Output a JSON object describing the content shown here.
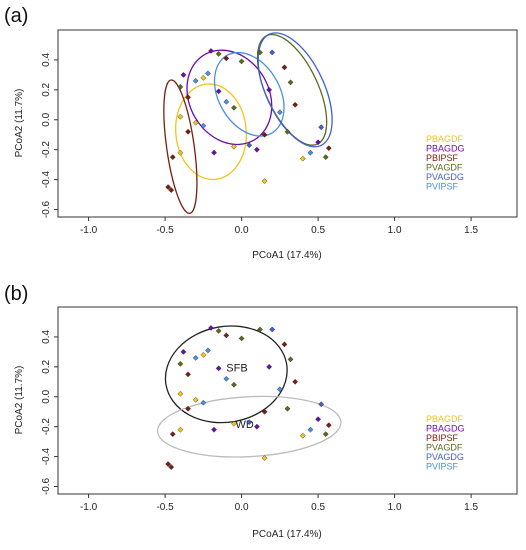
{
  "colors": {
    "PBAGDF": "#f0c419",
    "PBAGDG": "#6a0dad",
    "PBIPSF": "#7a1f0f",
    "PVAGDF": "#5b6b1e",
    "PVAGDG": "#3f5fd6",
    "PVIPSF": "#4a90e2"
  },
  "chart_data": [
    {
      "type": "scatter",
      "panel_label": "(a)",
      "xlabel": "PCoA1 (17.4%)",
      "ylabel": "PCoA2 (11.7%)",
      "xlim": [
        -1.2,
        1.8
      ],
      "ylim": [
        -0.65,
        0.6
      ],
      "xticks": [
        "-1.0",
        "-0.5",
        "0.0",
        "0.5",
        "1.0",
        "1.5"
      ],
      "yticks": [
        "-0.6",
        "-0.4",
        "-0.2",
        "0.0",
        "0.2",
        "0.4"
      ],
      "legend": [
        "PBAGDF",
        "PBAGDG",
        "PBIPSF",
        "PVAGDF",
        "PVAGDG",
        "PVIPSF"
      ],
      "legend_position": "right",
      "grid": false,
      "ellipses": [
        {
          "group": "PBAGDF",
          "cx": -0.2,
          "cy": -0.08,
          "rx": 0.23,
          "ry": 0.32,
          "angle_deg": 5
        },
        {
          "group": "PBIPSF",
          "cx": -0.4,
          "cy": -0.18,
          "rx": 0.09,
          "ry": 0.45,
          "angle_deg": 8
        },
        {
          "group": "PBAGDG",
          "cx": -0.08,
          "cy": 0.15,
          "rx": 0.26,
          "ry": 0.33,
          "angle_deg": 30
        },
        {
          "group": "PVIPSF",
          "cx": 0.05,
          "cy": 0.17,
          "rx": 0.2,
          "ry": 0.3,
          "angle_deg": 30
        },
        {
          "group": "PVAGDF",
          "cx": 0.33,
          "cy": 0.2,
          "rx": 0.17,
          "ry": 0.4,
          "angle_deg": 25
        },
        {
          "group": "PVAGDG",
          "cx": 0.35,
          "cy": 0.2,
          "rx": 0.19,
          "ry": 0.41,
          "angle_deg": 25
        }
      ],
      "points": [
        {
          "group": "PBAGDG",
          "x": -0.2,
          "y": 0.46
        },
        {
          "group": "PVAGDF",
          "x": -0.15,
          "y": 0.44
        },
        {
          "group": "PBIPSF",
          "x": -0.1,
          "y": 0.41
        },
        {
          "group": "PVAGDF",
          "x": 0.0,
          "y": 0.39
        },
        {
          "group": "PBAGDG",
          "x": -0.38,
          "y": 0.3
        },
        {
          "group": "PVAGDF",
          "x": -0.4,
          "y": 0.22
        },
        {
          "group": "PVIPSF",
          "x": -0.3,
          "y": 0.26
        },
        {
          "group": "PBAGDF",
          "x": -0.25,
          "y": 0.28
        },
        {
          "group": "PVIPSF",
          "x": -0.22,
          "y": 0.31
        },
        {
          "group": "PBIPSF",
          "x": -0.35,
          "y": 0.15
        },
        {
          "group": "PBAGDG",
          "x": -0.15,
          "y": 0.19
        },
        {
          "group": "PVIPSF",
          "x": -0.1,
          "y": 0.12
        },
        {
          "group": "PVAGDF",
          "x": -0.05,
          "y": 0.08
        },
        {
          "group": "PBAGDF",
          "x": -0.4,
          "y": 0.02
        },
        {
          "group": "PBIPSF",
          "x": -0.35,
          "y": -0.08
        },
        {
          "group": "PBAGDF",
          "x": -0.3,
          "y": -0.02
        },
        {
          "group": "PVIPSF",
          "x": -0.25,
          "y": -0.04
        },
        {
          "group": "PBIPSF",
          "x": -0.45,
          "y": -0.25
        },
        {
          "group": "PBAGDF",
          "x": -0.4,
          "y": -0.22
        },
        {
          "group": "PBAGDG",
          "x": -0.18,
          "y": -0.22
        },
        {
          "group": "PBAGDF",
          "x": -0.05,
          "y": -0.18
        },
        {
          "group": "PBIPSF",
          "x": -0.48,
          "y": -0.45
        },
        {
          "group": "PBIPSF",
          "x": -0.46,
          "y": -0.47
        },
        {
          "group": "PBAGDF",
          "x": 0.15,
          "y": -0.41
        },
        {
          "group": "PBAGDG",
          "x": 0.1,
          "y": -0.2
        },
        {
          "group": "PVAGDG",
          "x": 0.05,
          "y": -0.17
        },
        {
          "group": "PVAGDF",
          "x": 0.12,
          "y": 0.45
        },
        {
          "group": "PVAGDG",
          "x": 0.2,
          "y": 0.45
        },
        {
          "group": "PBIPSF",
          "x": 0.28,
          "y": 0.35
        },
        {
          "group": "PVAGDF",
          "x": 0.32,
          "y": 0.25
        },
        {
          "group": "PBIPSF",
          "x": 0.35,
          "y": 0.1
        },
        {
          "group": "PBAGDG",
          "x": 0.18,
          "y": 0.2
        },
        {
          "group": "PVIPSF",
          "x": 0.25,
          "y": 0.05
        },
        {
          "group": "PVAGDF",
          "x": 0.3,
          "y": -0.08
        },
        {
          "group": "PBIPSF",
          "x": 0.15,
          "y": -0.1
        },
        {
          "group": "PBAGDG",
          "x": 0.5,
          "y": -0.15
        },
        {
          "group": "PVAGDF",
          "x": 0.55,
          "y": -0.25
        },
        {
          "group": "PVAGDG",
          "x": 0.52,
          "y": -0.05
        },
        {
          "group": "PBIPSF",
          "x": 0.57,
          "y": -0.19
        },
        {
          "group": "PVIPSF",
          "x": 0.45,
          "y": -0.22
        },
        {
          "group": "PBAGDF",
          "x": 0.4,
          "y": -0.26
        }
      ]
    },
    {
      "type": "scatter",
      "panel_label": "(b)",
      "xlabel": "PCoA1 (17.4%)",
      "ylabel": "PCoA2 (11.7%)",
      "xlim": [
        -1.2,
        1.8
      ],
      "ylim": [
        -0.65,
        0.6
      ],
      "xticks": [
        "-1.0",
        "-0.5",
        "0.0",
        "0.5",
        "1.0",
        "1.5"
      ],
      "yticks": [
        "-0.6",
        "-0.4",
        "-0.2",
        "0.0",
        "0.2",
        "0.4"
      ],
      "legend": [
        "PBAGDF",
        "PBAGDG",
        "PBIPSF",
        "PVAGDF",
        "PVAGDG",
        "PVIPSF"
      ],
      "legend_position": "right",
      "grid": false,
      "annotations": [
        {
          "text": "SFB",
          "x": -0.03,
          "y": 0.17
        },
        {
          "text": "WD",
          "x": 0.02,
          "y": -0.21
        }
      ],
      "ellipses": [
        {
          "group": "SFB",
          "color": "#222222",
          "cx": -0.1,
          "cy": 0.15,
          "rx": 0.4,
          "ry": 0.32,
          "angle_deg": 10
        },
        {
          "group": "WD",
          "color": "#bbbbbb",
          "cx": 0.05,
          "cy": -0.2,
          "rx": 0.6,
          "ry": 0.2,
          "angle_deg": 3
        }
      ],
      "points": [
        {
          "group": "PBAGDG",
          "x": -0.2,
          "y": 0.46
        },
        {
          "group": "PVAGDF",
          "x": -0.15,
          "y": 0.44
        },
        {
          "group": "PBIPSF",
          "x": -0.1,
          "y": 0.41
        },
        {
          "group": "PVAGDF",
          "x": 0.0,
          "y": 0.39
        },
        {
          "group": "PBAGDG",
          "x": -0.38,
          "y": 0.3
        },
        {
          "group": "PVAGDF",
          "x": -0.4,
          "y": 0.22
        },
        {
          "group": "PVIPSF",
          "x": -0.3,
          "y": 0.26
        },
        {
          "group": "PBAGDF",
          "x": -0.25,
          "y": 0.28
        },
        {
          "group": "PVIPSF",
          "x": -0.22,
          "y": 0.31
        },
        {
          "group": "PBIPSF",
          "x": -0.35,
          "y": 0.15
        },
        {
          "group": "PBAGDG",
          "x": -0.15,
          "y": 0.19
        },
        {
          "group": "PVIPSF",
          "x": -0.1,
          "y": 0.12
        },
        {
          "group": "PVAGDF",
          "x": -0.05,
          "y": 0.08
        },
        {
          "group": "PBAGDF",
          "x": -0.4,
          "y": 0.02
        },
        {
          "group": "PBIPSF",
          "x": -0.35,
          "y": -0.08
        },
        {
          "group": "PBAGDF",
          "x": -0.3,
          "y": -0.02
        },
        {
          "group": "PVIPSF",
          "x": -0.25,
          "y": -0.04
        },
        {
          "group": "PBIPSF",
          "x": -0.45,
          "y": -0.25
        },
        {
          "group": "PBAGDF",
          "x": -0.4,
          "y": -0.22
        },
        {
          "group": "PBAGDG",
          "x": -0.18,
          "y": -0.22
        },
        {
          "group": "PBAGDF",
          "x": -0.05,
          "y": -0.18
        },
        {
          "group": "PBIPSF",
          "x": -0.48,
          "y": -0.45
        },
        {
          "group": "PBIPSF",
          "x": -0.46,
          "y": -0.47
        },
        {
          "group": "PBAGDF",
          "x": 0.15,
          "y": -0.41
        },
        {
          "group": "PBAGDG",
          "x": 0.1,
          "y": -0.2
        },
        {
          "group": "PVAGDG",
          "x": 0.05,
          "y": -0.17
        },
        {
          "group": "PVAGDF",
          "x": 0.12,
          "y": 0.45
        },
        {
          "group": "PVAGDG",
          "x": 0.2,
          "y": 0.45
        },
        {
          "group": "PBIPSF",
          "x": 0.28,
          "y": 0.35
        },
        {
          "group": "PVAGDF",
          "x": 0.32,
          "y": 0.25
        },
        {
          "group": "PBIPSF",
          "x": 0.35,
          "y": 0.1
        },
        {
          "group": "PBAGDG",
          "x": 0.18,
          "y": 0.2
        },
        {
          "group": "PVIPSF",
          "x": 0.25,
          "y": 0.05
        },
        {
          "group": "PVAGDF",
          "x": 0.3,
          "y": -0.08
        },
        {
          "group": "PBIPSF",
          "x": 0.15,
          "y": -0.1
        },
        {
          "group": "PBAGDG",
          "x": 0.5,
          "y": -0.15
        },
        {
          "group": "PVAGDF",
          "x": 0.55,
          "y": -0.25
        },
        {
          "group": "PVAGDG",
          "x": 0.52,
          "y": -0.05
        },
        {
          "group": "PBIPSF",
          "x": 0.57,
          "y": -0.19
        },
        {
          "group": "PVIPSF",
          "x": 0.45,
          "y": -0.22
        },
        {
          "group": "PBAGDF",
          "x": 0.4,
          "y": -0.26
        }
      ]
    }
  ]
}
